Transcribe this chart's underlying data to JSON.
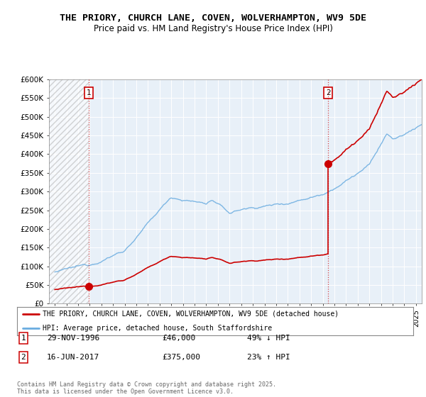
{
  "title": "THE PRIORY, CHURCH LANE, COVEN, WOLVERHAMPTON, WV9 5DE",
  "subtitle": "Price paid vs. HM Land Registry's House Price Index (HPI)",
  "sale1_date": "29-NOV-1996",
  "sale1_price": 46000,
  "sale1_label": "49% ↓ HPI",
  "sale2_date": "16-JUN-2017",
  "sale2_price": 375000,
  "sale2_label": "23% ↑ HPI",
  "sale1_x": 1996.91,
  "sale2_x": 2017.46,
  "legend1": "THE PRIORY, CHURCH LANE, COVEN, WOLVERHAMPTON, WV9 5DE (detached house)",
  "legend2": "HPI: Average price, detached house, South Staffordshire",
  "footer": "Contains HM Land Registry data © Crown copyright and database right 2025.\nThis data is licensed under the Open Government Licence v3.0.",
  "hpi_color": "#6aace0",
  "price_color": "#cc0000",
  "ylim_max": 600000,
  "xlim_min": 1993.5,
  "xlim_max": 2025.5,
  "bg_color": "#ddeeff",
  "plot_bg": "#e8f0f8"
}
